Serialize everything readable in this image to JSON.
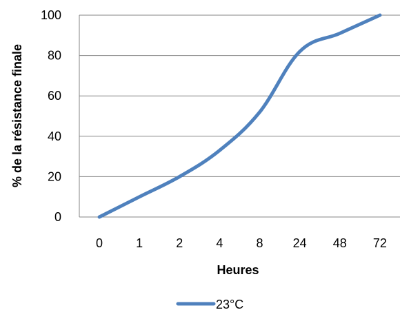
{
  "chart_data": {
    "type": "line",
    "categories": [
      "0",
      "1",
      "2",
      "4",
      "8",
      "24",
      "48",
      "72"
    ],
    "series": [
      {
        "name": "23°C",
        "values": [
          0,
          10,
          20,
          33,
          52,
          82,
          91,
          100
        ],
        "color": "#4f81bd"
      }
    ],
    "xlabel": "Heures",
    "ylabel": "% de la résistance finale",
    "ylim": [
      0,
      100
    ],
    "yticks": [
      0,
      20,
      40,
      60,
      80,
      100
    ],
    "grid": true,
    "legend": "bottom"
  }
}
